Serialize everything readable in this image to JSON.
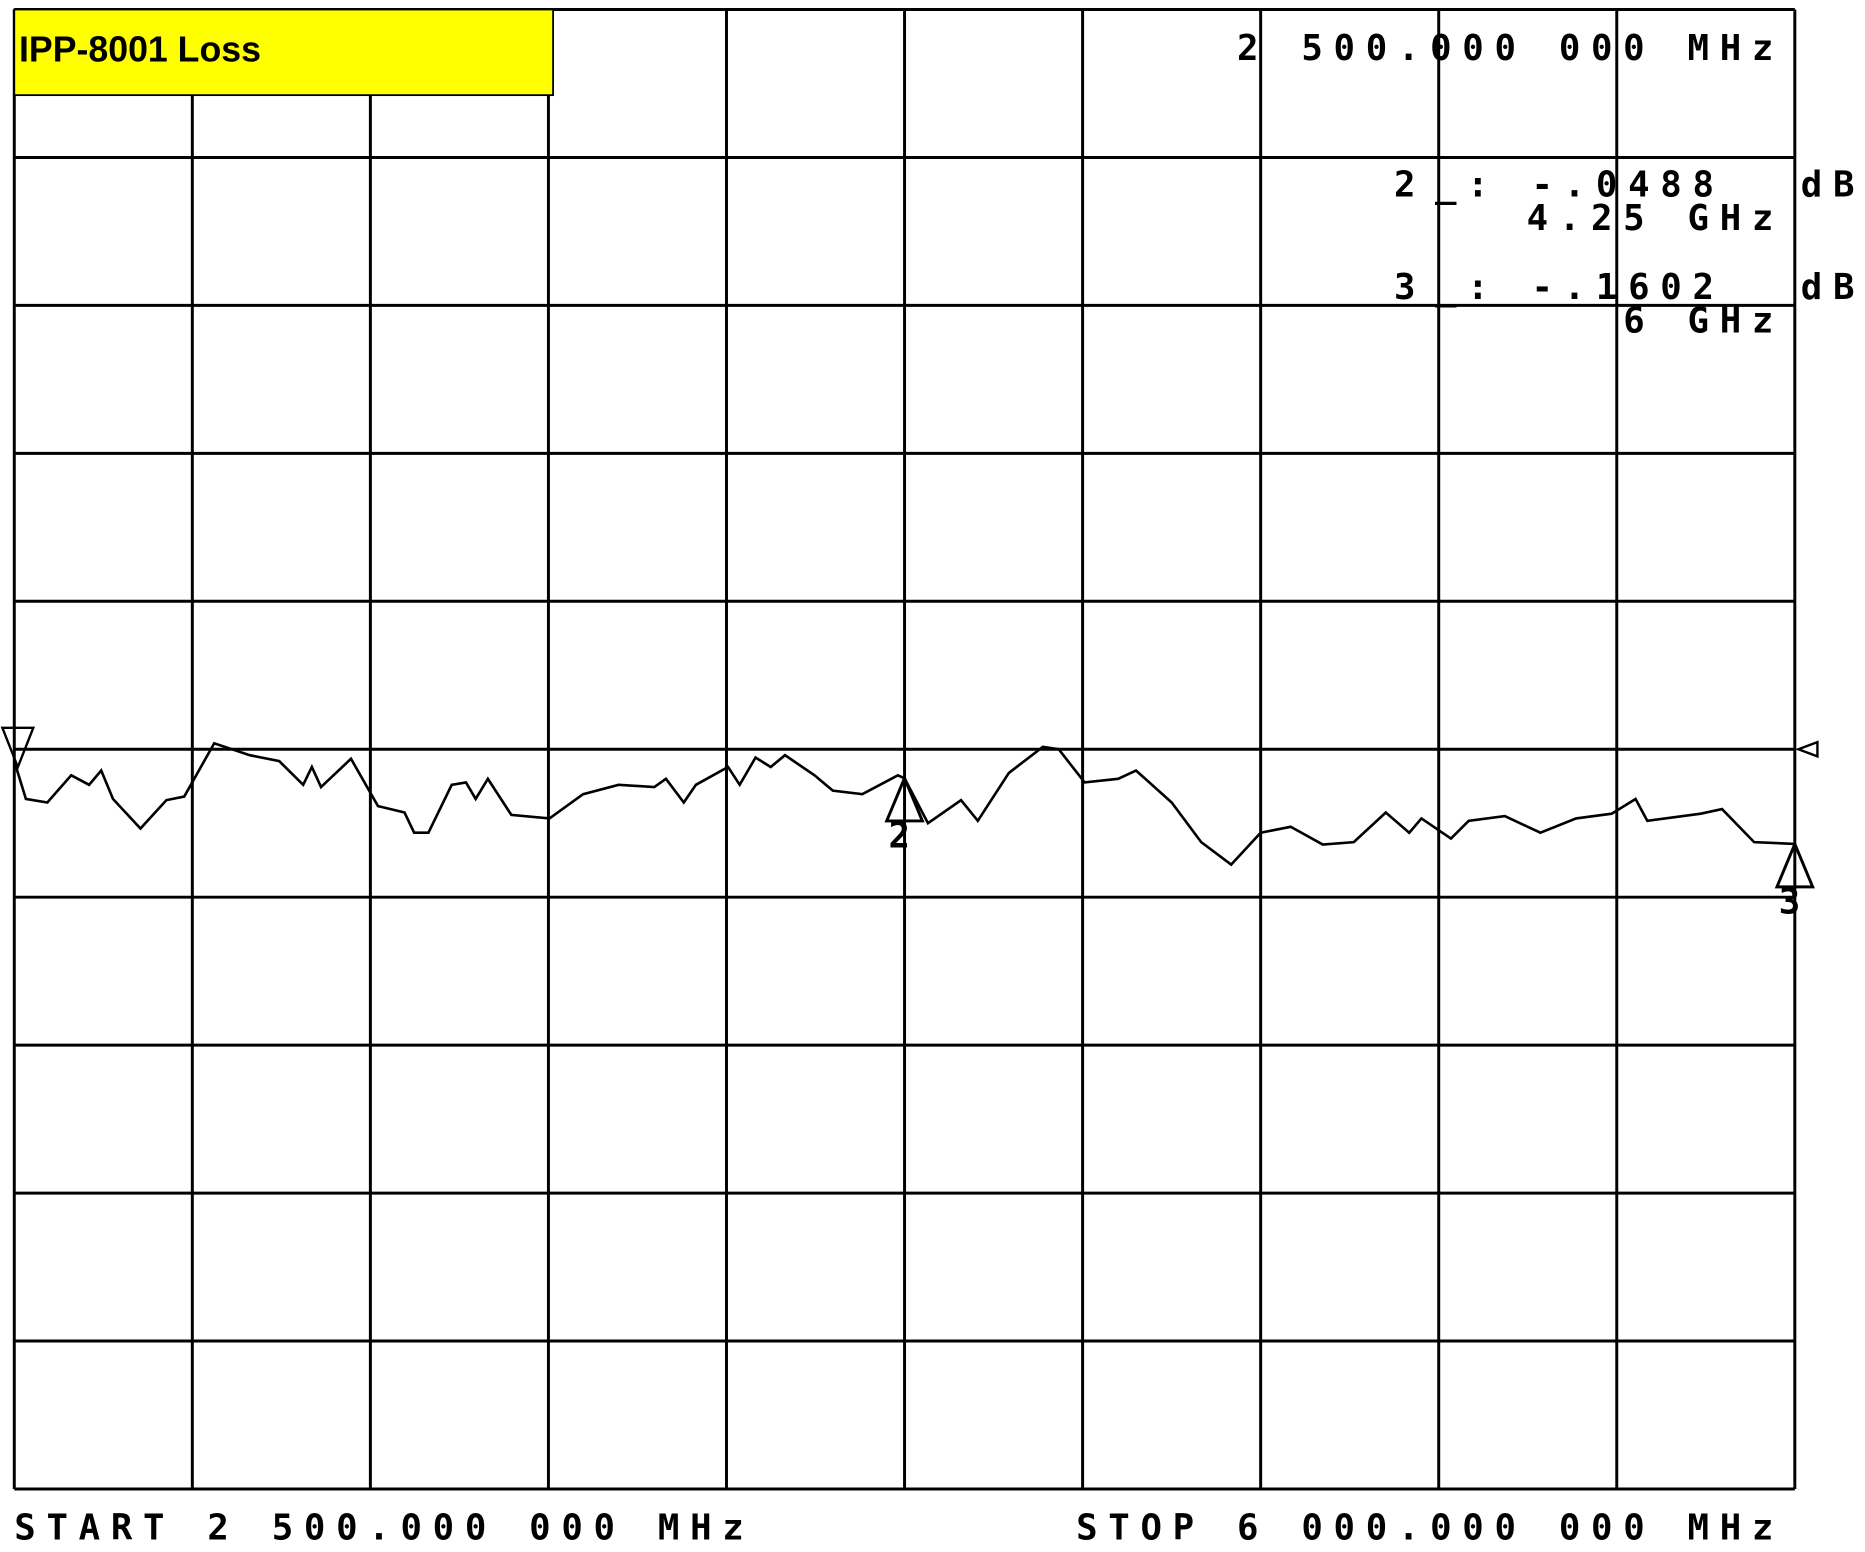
{
  "chart_data": {
    "type": "line",
    "title": "IPP-8001 Loss",
    "readout": "2 500.000 000 MHz",
    "start_label": "START 2 500.000 000 MHz",
    "stop_label": "STOP 6 000.000 000 MHz",
    "xlim": [
      2.5,
      6
    ],
    "ylim": [
      -1.25,
      1.25
    ],
    "grid": true,
    "grid_divisions": [
      10,
      10
    ],
    "color": "#000000",
    "series": [
      {
        "x": [
          2.5,
          2.523,
          2.565,
          2.612,
          2.647,
          2.671,
          2.694,
          2.748,
          2.799,
          2.834,
          2.893,
          2.963,
          3.021,
          3.068,
          3.085,
          3.103,
          3.162,
          3.215,
          3.267,
          3.286,
          3.314,
          3.36,
          3.388,
          3.407,
          3.431,
          3.477,
          3.552,
          3.618,
          3.688,
          3.758,
          3.781,
          3.816,
          3.84,
          3.903,
          3.926,
          3.957,
          3.987,
          4.015,
          4.073,
          4.109,
          4.167,
          4.237,
          4.25,
          4.296,
          4.361,
          4.394,
          4.455,
          4.522,
          4.553,
          4.604,
          4.67,
          4.705,
          4.775,
          4.833,
          4.892,
          4.95,
          5.009,
          5.072,
          5.133,
          5.196,
          5.242,
          5.266,
          5.324,
          5.359,
          5.43,
          5.5,
          5.57,
          5.64,
          5.687,
          5.71,
          5.815,
          5.857,
          5.92,
          6.0
        ],
        "values": [
          -0.02,
          -0.084,
          -0.09,
          -0.044,
          -0.06,
          -0.036,
          -0.084,
          -0.134,
          -0.086,
          -0.08,
          0.01,
          -0.01,
          -0.02,
          -0.06,
          -0.03,
          -0.064,
          -0.016,
          -0.096,
          -0.107,
          -0.141,
          -0.141,
          -0.06,
          -0.056,
          -0.084,
          -0.05,
          -0.111,
          -0.117,
          -0.076,
          -0.06,
          -0.064,
          -0.05,
          -0.09,
          -0.06,
          -0.03,
          -0.06,
          -0.014,
          -0.03,
          -0.01,
          -0.044,
          -0.07,
          -0.076,
          -0.044,
          -0.049,
          -0.125,
          -0.086,
          -0.121,
          -0.04,
          0.004,
          0.0,
          -0.056,
          -0.05,
          -0.036,
          -0.09,
          -0.157,
          -0.195,
          -0.141,
          -0.131,
          -0.161,
          -0.157,
          -0.107,
          -0.141,
          -0.117,
          -0.151,
          -0.121,
          -0.113,
          -0.141,
          -0.117,
          -0.109,
          -0.084,
          -0.121,
          -0.109,
          -0.101,
          -0.157,
          -0.16
        ]
      }
    ],
    "markers": [
      {
        "name": "2",
        "x": 4.25,
        "x_label": "4.25 GHz",
        "value": -0.0488,
        "value_label": "_: -.0488",
        "unit": "dB"
      },
      {
        "name": "3",
        "x": 6,
        "x_label": "6 GHz",
        "value": -0.1602,
        "value_label": "_: -.1602",
        "unit": "dB"
      }
    ]
  }
}
